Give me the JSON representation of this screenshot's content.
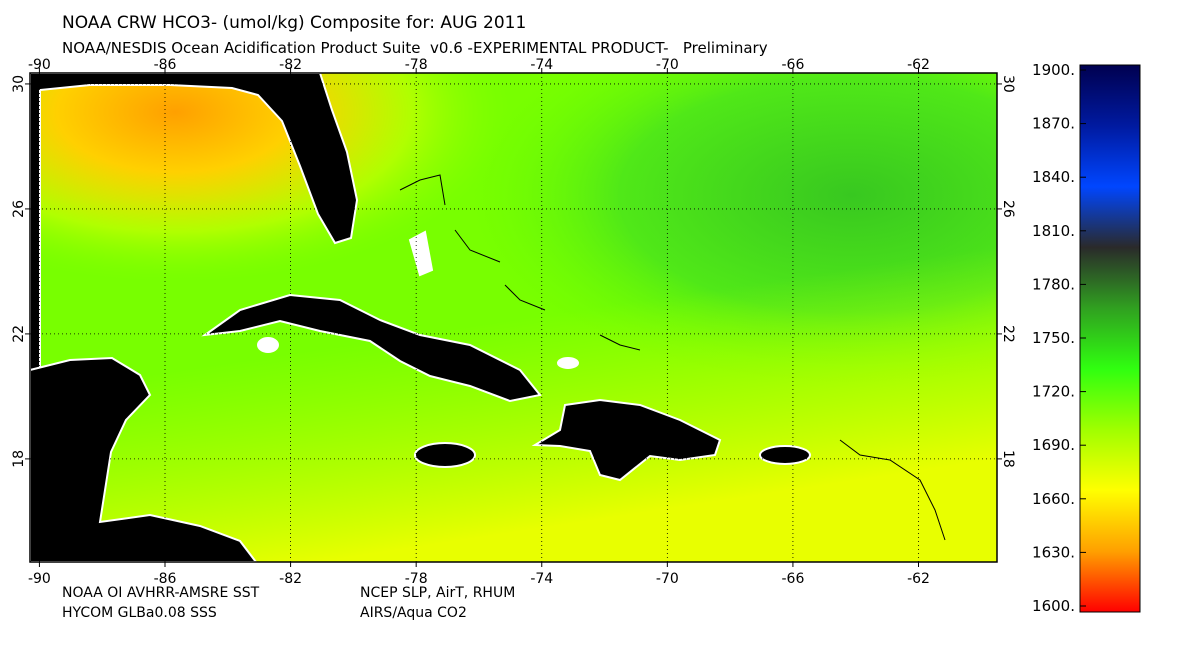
{
  "header": {
    "title": "NOAA CRW HCO3- (umol/kg) Composite for: AUG 2011",
    "subtitle": "NOAA/NESDIS Ocean Acidification Product Suite  v0.6 -EXPERIMENTAL PRODUCT-   Preliminary"
  },
  "map": {
    "lon_range": [
      -90.3,
      -59.5
    ],
    "lat_range": [
      14.7,
      30.35
    ],
    "lon_ticks": [
      -90,
      -86,
      -82,
      -78,
      -74,
      -70,
      -66,
      -62
    ],
    "lat_ticks": [
      30,
      26,
      22,
      18
    ],
    "grid": true
  },
  "colorbar": {
    "range": [
      1600,
      1900
    ],
    "ticks": [
      {
        "value": 1900,
        "label": "1900."
      },
      {
        "value": 1870,
        "label": "1870."
      },
      {
        "value": 1840,
        "label": "1840."
      },
      {
        "value": 1810,
        "label": "1810."
      },
      {
        "value": 1780,
        "label": "1780."
      },
      {
        "value": 1750,
        "label": "1750."
      },
      {
        "value": 1720,
        "label": "1720."
      },
      {
        "value": 1690,
        "label": "1690."
      },
      {
        "value": 1660,
        "label": "1660."
      },
      {
        "value": 1630,
        "label": "1630."
      },
      {
        "value": 1600,
        "label": "1600."
      }
    ],
    "colors": [
      "#000050",
      "#001aa0",
      "#0046ff",
      "#2a2a2a",
      "#30a020",
      "#30ff10",
      "#a0ff00",
      "#ffff00",
      "#ffa000",
      "#ff0000"
    ]
  },
  "footer": {
    "sources_left": [
      "NOAA OI AVHRR-AMSRE SST",
      "HYCOM GLBa0.08 SSS"
    ],
    "sources_right": [
      "NCEP SLP, AirT, RHUM",
      "AIRS/Aqua CO2"
    ]
  }
}
